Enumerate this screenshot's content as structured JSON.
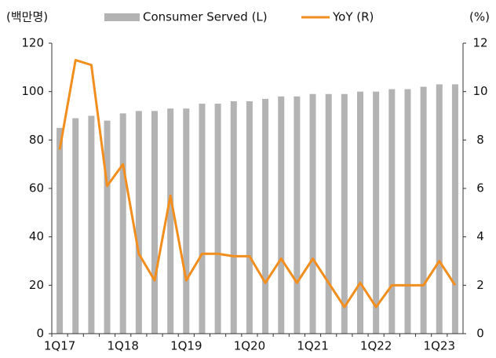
{
  "chart_data": {
    "type": "bar_line",
    "y_label": "(백만명)",
    "y2_label": "(%)",
    "categories": [
      "1Q17",
      null,
      null,
      null,
      "1Q18",
      null,
      null,
      null,
      "1Q19",
      null,
      null,
      null,
      "1Q20",
      null,
      null,
      null,
      "1Q21",
      null,
      null,
      null,
      "1Q22",
      null,
      null,
      null,
      "1Q23",
      null
    ],
    "series": [
      {
        "name": "Consumer Served (L)",
        "color": "#b3b3b3",
        "type": "bar",
        "axis": "y",
        "values": [
          85,
          89,
          90,
          88,
          91,
          92,
          92,
          93,
          93,
          95,
          95,
          96,
          96,
          97,
          98,
          98,
          99,
          99,
          99,
          100,
          100,
          101,
          101,
          102,
          103,
          103
        ]
      },
      {
        "name": "YoY (R)",
        "color": "#f28e1e",
        "type": "line",
        "axis": "y2",
        "values": [
          7.6,
          11.3,
          11.1,
          6.1,
          7.0,
          3.3,
          2.2,
          5.7,
          2.2,
          3.3,
          3.3,
          3.2,
          3.2,
          2.1,
          3.1,
          2.1,
          3.1,
          2.1,
          1.1,
          2.1,
          1.1,
          2.0,
          2.0,
          2.0,
          3.0,
          2.0
        ]
      }
    ],
    "ylim": [
      0,
      120
    ],
    "yticks": [
      0,
      20,
      40,
      60,
      80,
      100,
      120
    ],
    "y2lim": [
      0,
      12
    ],
    "y2ticks": [
      0,
      2,
      4,
      6,
      8,
      10,
      12
    ]
  }
}
